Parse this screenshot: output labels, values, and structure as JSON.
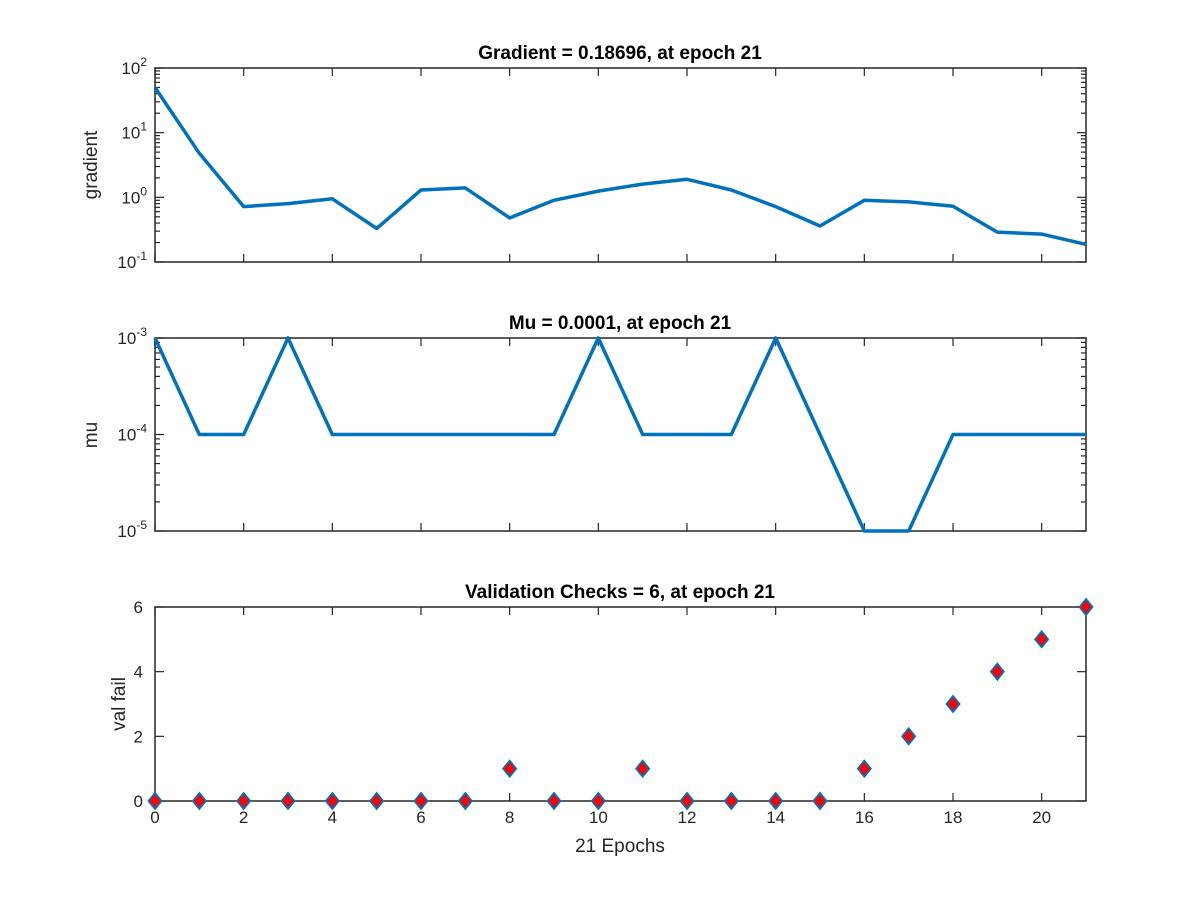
{
  "chart_data": [
    {
      "type": "line",
      "title": "Gradient = 0.18696, at epoch 21",
      "xlabel": "",
      "ylabel": "gradient",
      "yscale": "log",
      "xlim": [
        0,
        21
      ],
      "ylim": [
        0.1,
        100
      ],
      "yticks": [
        {
          "base": "10",
          "exp": "-1"
        },
        {
          "base": "10",
          "exp": "0"
        },
        {
          "base": "10",
          "exp": "1"
        },
        {
          "base": "10",
          "exp": "2"
        }
      ],
      "x_ticklabels_shown": false,
      "grid": false,
      "line_color": "#0072bd",
      "series": [
        {
          "x": [
            0,
            1,
            2,
            3,
            4,
            5,
            6,
            7,
            8,
            9,
            10,
            11,
            12,
            13,
            14,
            15,
            16,
            17,
            18,
            19,
            20,
            21
          ],
          "values": [
            50,
            4.8,
            0.72,
            0.8,
            0.95,
            0.33,
            1.3,
            1.4,
            0.48,
            0.9,
            1.25,
            1.6,
            1.9,
            1.3,
            0.72,
            0.36,
            0.9,
            0.85,
            0.73,
            0.29,
            0.27,
            0.18696
          ]
        }
      ]
    },
    {
      "type": "line",
      "title": "Mu = 0.0001, at epoch 21",
      "xlabel": "",
      "ylabel": "mu",
      "yscale": "log",
      "xlim": [
        0,
        21
      ],
      "ylim": [
        1e-05,
        0.001
      ],
      "yticks": [
        {
          "base": "10",
          "exp": "-5"
        },
        {
          "base": "10",
          "exp": "-4"
        },
        {
          "base": "10",
          "exp": "-3"
        }
      ],
      "x_ticklabels_shown": false,
      "grid": false,
      "line_color": "#0072bd",
      "series": [
        {
          "x": [
            0,
            1,
            2,
            3,
            4,
            5,
            6,
            7,
            8,
            9,
            10,
            11,
            12,
            13,
            14,
            15,
            16,
            17,
            18,
            19,
            20,
            21
          ],
          "values": [
            0.001,
            0.0001,
            0.0001,
            0.001,
            0.0001,
            0.0001,
            0.0001,
            0.0001,
            0.0001,
            0.0001,
            0.001,
            0.0001,
            0.0001,
            0.0001,
            0.001,
            0.0001,
            1e-05,
            1e-05,
            0.0001,
            0.0001,
            0.0001,
            0.0001
          ]
        }
      ]
    },
    {
      "type": "scatter",
      "title": "Validation Checks = 6, at epoch 21",
      "xlabel": "21 Epochs",
      "ylabel": "val fail",
      "yscale": "linear",
      "xlim": [
        0,
        21
      ],
      "ylim": [
        0,
        6
      ],
      "xticks": [
        "0",
        "2",
        "4",
        "6",
        "8",
        "10",
        "12",
        "14",
        "16",
        "18",
        "20"
      ],
      "yticks": [
        "0",
        "2",
        "4",
        "6"
      ],
      "grid": false,
      "marker": "diamond",
      "marker_face": "#ff0000",
      "marker_edge": "#0072bd",
      "series": [
        {
          "x": [
            0,
            1,
            2,
            3,
            4,
            5,
            6,
            7,
            8,
            9,
            10,
            11,
            12,
            13,
            14,
            15,
            16,
            17,
            18,
            19,
            20,
            21
          ],
          "values": [
            0,
            0,
            0,
            0,
            0,
            0,
            0,
            0,
            1,
            0,
            0,
            1,
            0,
            0,
            0,
            0,
            1,
            2,
            3,
            4,
            5,
            6
          ]
        }
      ]
    }
  ]
}
